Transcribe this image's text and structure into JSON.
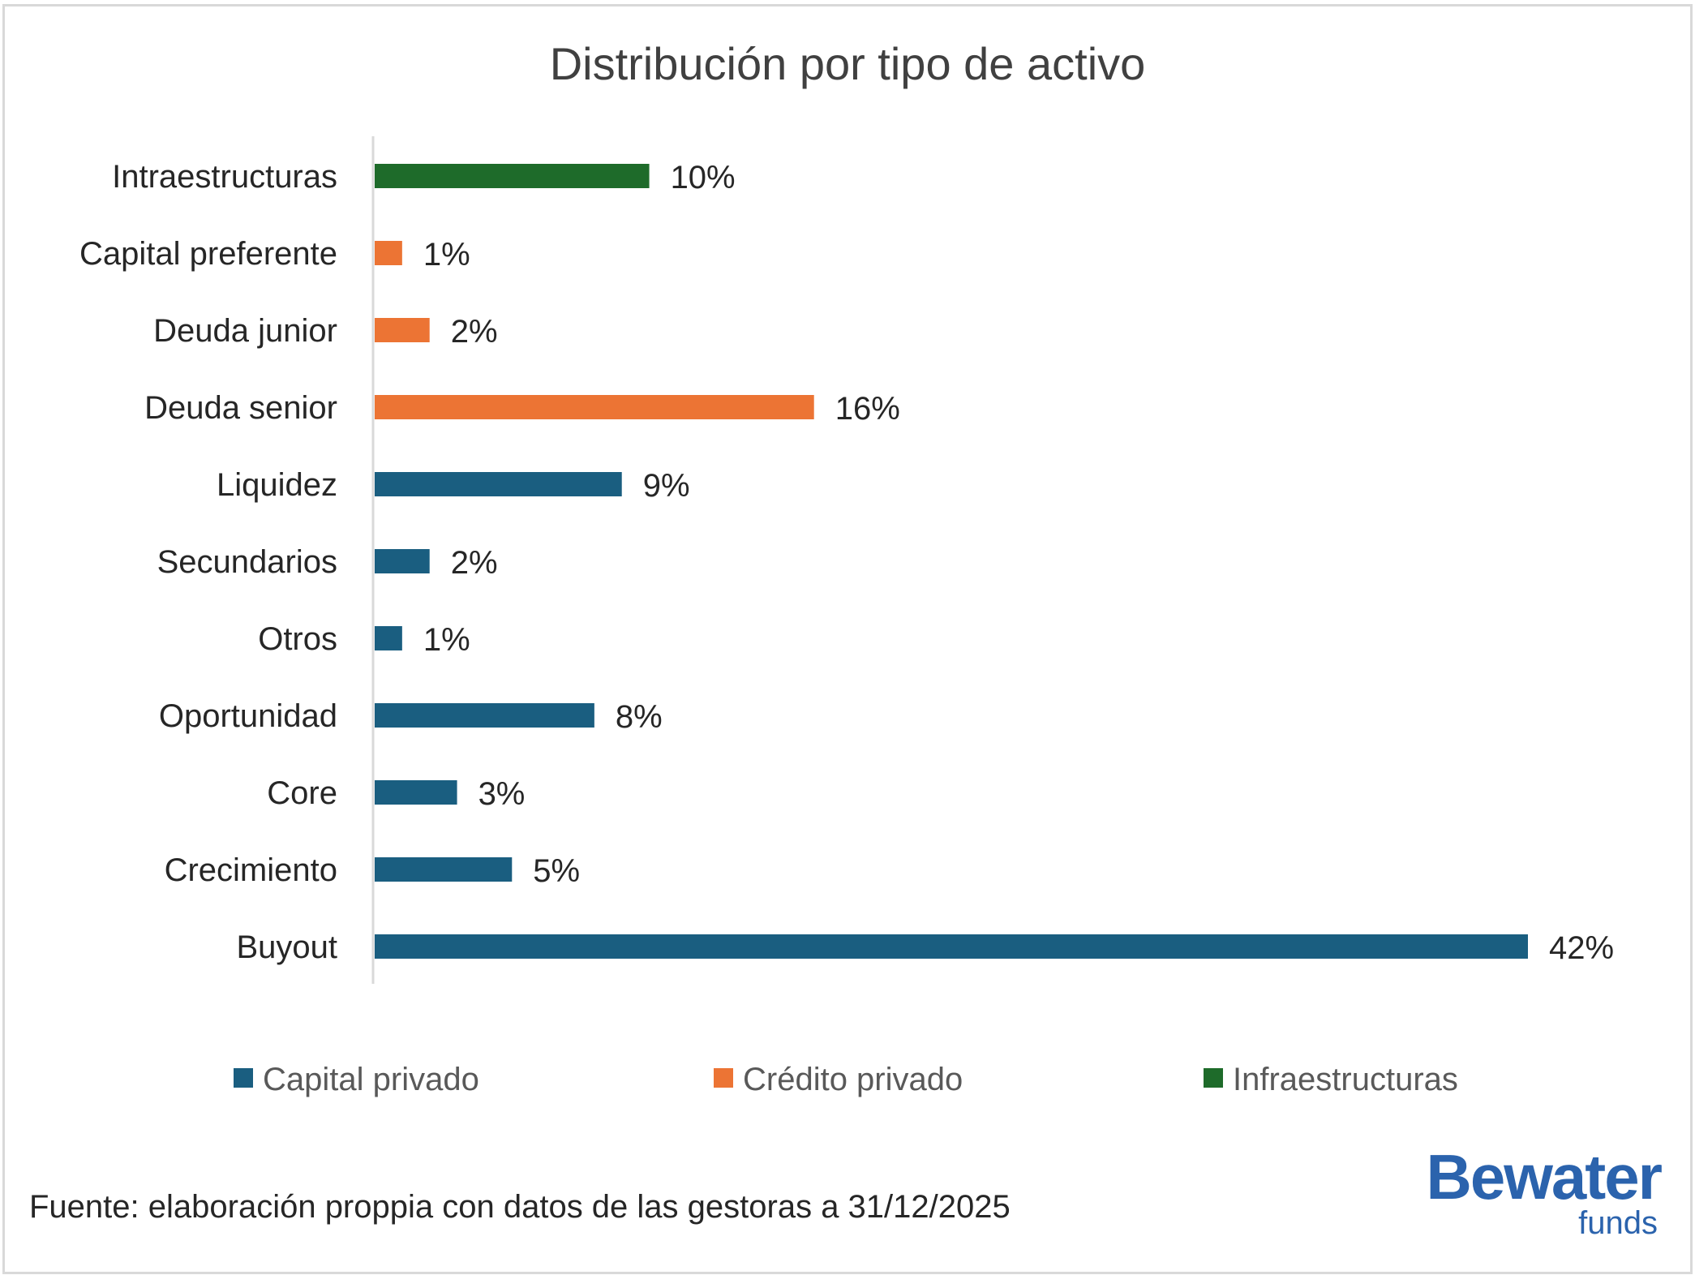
{
  "chart_data": {
    "type": "bar",
    "orientation": "horizontal",
    "title": "Distribución por tipo de activo",
    "categories": [
      "Intraestructuras",
      "Capital preferente",
      "Deuda junior",
      "Deuda senior",
      "Liquidez",
      "Secundarios",
      "Otros",
      "Oportunidad",
      "Core",
      "Crecimiento",
      "Buyout"
    ],
    "values": [
      10,
      1,
      2,
      16,
      9,
      2,
      1,
      8,
      3,
      5,
      42
    ],
    "value_labels": [
      "10%",
      "1%",
      "2%",
      "16%",
      "9%",
      "2%",
      "1%",
      "8%",
      "3%",
      "5%",
      "42%"
    ],
    "groups": [
      "Infraestructuras",
      "Crédito privado",
      "Crédito privado",
      "Crédito privado",
      "Capital privado",
      "Capital privado",
      "Capital privado",
      "Capital privado",
      "Capital privado",
      "Capital privado",
      "Capital privado"
    ],
    "legend": [
      {
        "name": "Capital privado",
        "color": "#1a5e80"
      },
      {
        "name": "Crédito privado",
        "color": "#ec7434"
      },
      {
        "name": "Infraestructuras",
        "color": "#1e6b2a"
      }
    ],
    "legend_position": "bottom",
    "value_unit": "%",
    "xlim": [
      0,
      42
    ],
    "grid": false,
    "xaxis_visible": false
  },
  "source_note": "Fuente: elaboración proppia con datos de las gestoras a 31/12/2025",
  "logo": {
    "main": "Bewater",
    "sub": "funds",
    "color": "#2b63ad"
  }
}
